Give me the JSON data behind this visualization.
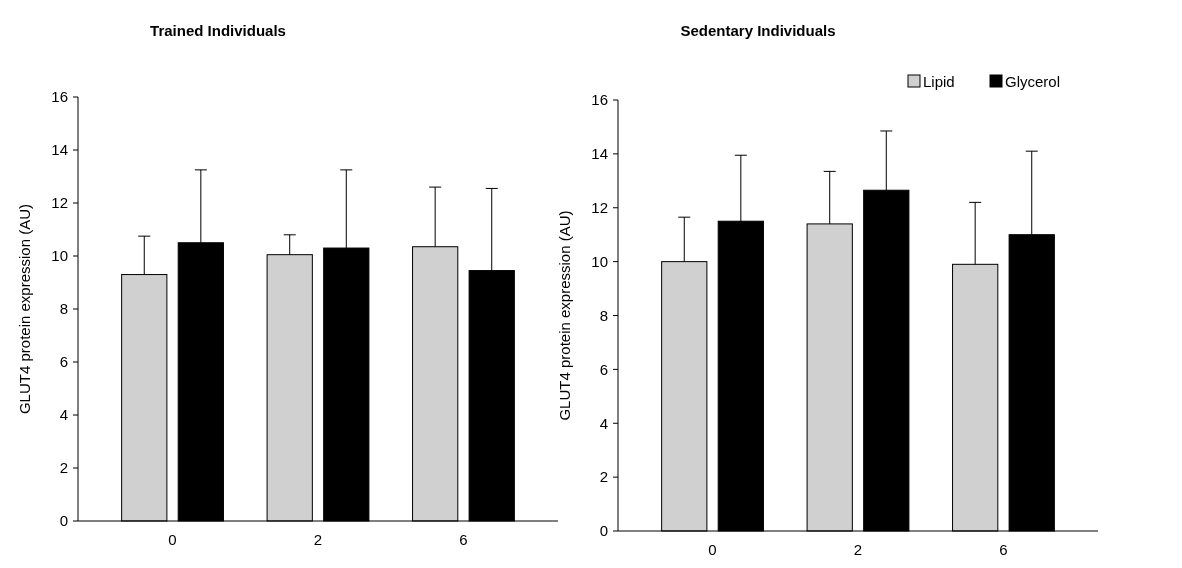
{
  "chart_data": [
    {
      "type": "bar",
      "title": "Trained Individuals",
      "ylabel": "GLUT4 protein expression (AU)",
      "categories": [
        "0",
        "2",
        "6"
      ],
      "ylim": [
        0,
        16
      ],
      "yticks": [
        0,
        2,
        4,
        6,
        8,
        10,
        12,
        14,
        16
      ],
      "series": [
        {
          "color": "#d0d0d0",
          "values": [
            9.3,
            10.05,
            10.35
          ],
          "errors": [
            [
              9.3,
              10.75
            ],
            [
              10.05,
              10.8
            ],
            [
              10.35,
              12.6
            ]
          ]
        },
        {
          "color": "#000000",
          "values": [
            10.5,
            10.3,
            9.45
          ],
          "errors": [
            [
              10.5,
              13.25
            ],
            [
              10.3,
              13.25
            ],
            [
              9.45,
              12.55
            ]
          ]
        }
      ]
    },
    {
      "type": "bar",
      "title": "Sedentary Individuals",
      "ylabel": "GLUT4 protein expression (AU)",
      "categories": [
        "0",
        "2",
        "6"
      ],
      "ylim": [
        0,
        16
      ],
      "yticks": [
        0,
        2,
        4,
        6,
        8,
        10,
        12,
        14,
        16
      ],
      "legend": "top right",
      "series": [
        {
          "name": "Lipid",
          "color": "#d0d0d0",
          "values": [
            10.0,
            11.4,
            9.9
          ],
          "errors": [
            [
              10.0,
              11.65
            ],
            [
              11.4,
              13.35
            ],
            [
              9.9,
              12.2
            ]
          ]
        },
        {
          "name": "Glycerol",
          "color": "#000000",
          "values": [
            11.5,
            12.65,
            11.0
          ],
          "errors": [
            [
              11.5,
              13.95
            ],
            [
              12.65,
              14.85
            ],
            [
              11.0,
              14.1
            ]
          ]
        }
      ]
    }
  ]
}
